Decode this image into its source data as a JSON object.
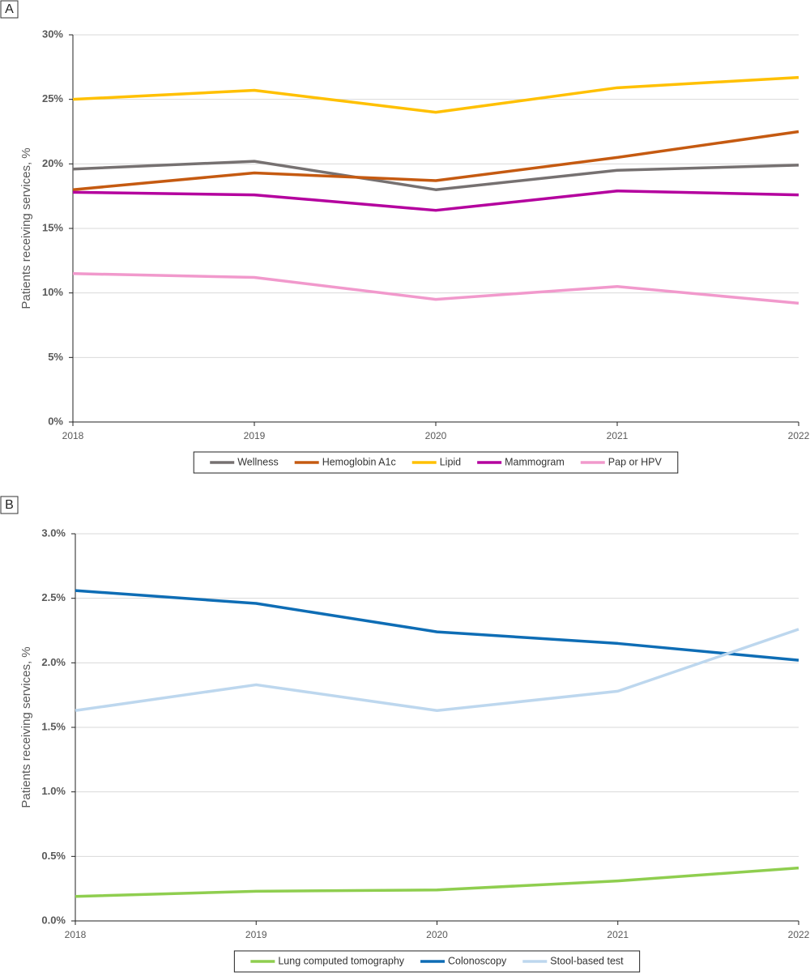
{
  "chart_data": [
    {
      "type": "line",
      "panel": "A",
      "y_label": "Patients receiving services, %",
      "categories": [
        "2018",
        "2019",
        "2020",
        "2021",
        "2022"
      ],
      "ylim": [
        0,
        30
      ],
      "yticks": [
        {
          "value": 0,
          "label": "0%"
        },
        {
          "value": 5,
          "label": "5%"
        },
        {
          "value": 10,
          "label": "10%"
        },
        {
          "value": 15,
          "label": "15%"
        },
        {
          "value": 20,
          "label": "20%"
        },
        {
          "value": 25,
          "label": "25%"
        },
        {
          "value": 30,
          "label": "30%"
        }
      ],
      "grid": true,
      "series": [
        {
          "name": "Wellness",
          "color": "#767171",
          "values": [
            19.6,
            20.2,
            18.0,
            19.5,
            19.9
          ]
        },
        {
          "name": "Hemoglobin A1c",
          "color": "#c55a11",
          "values": [
            18.0,
            19.3,
            18.7,
            20.5,
            22.5
          ]
        },
        {
          "name": "Lipid",
          "color": "#ffc000",
          "values": [
            25.0,
            25.7,
            24.0,
            25.9,
            26.7
          ]
        },
        {
          "name": "Mammogram",
          "color": "#b4009e",
          "values": [
            17.8,
            17.6,
            16.4,
            17.9,
            17.6
          ]
        },
        {
          "name": "Pap or HPV",
          "color": "#f199cc",
          "values": [
            11.5,
            11.2,
            9.5,
            10.5,
            9.2
          ]
        }
      ]
    },
    {
      "type": "line",
      "panel": "B",
      "y_label": "Patients receiving services, %",
      "categories": [
        "2018",
        "2019",
        "2020",
        "2021",
        "2022"
      ],
      "ylim": [
        0,
        3
      ],
      "yticks": [
        {
          "value": 0,
          "label": "0.0%"
        },
        {
          "value": 0.5,
          "label": "0.5%"
        },
        {
          "value": 1,
          "label": "1.0%"
        },
        {
          "value": 1.5,
          "label": "1.5%"
        },
        {
          "value": 2,
          "label": "2.0%"
        },
        {
          "value": 2.5,
          "label": "2.5%"
        },
        {
          "value": 3,
          "label": "3.0%"
        }
      ],
      "grid": true,
      "series": [
        {
          "name": "Lung computed tomography",
          "color": "#8fce4f",
          "values": [
            0.19,
            0.23,
            0.24,
            0.31,
            0.41
          ]
        },
        {
          "name": "Colonoscopy",
          "color": "#0e6db5",
          "values": [
            2.56,
            2.46,
            2.24,
            2.15,
            2.02
          ]
        },
        {
          "name": "Stool-based test",
          "color": "#bdd7ee",
          "values": [
            1.63,
            1.83,
            1.63,
            1.78,
            2.26
          ]
        }
      ]
    }
  ]
}
